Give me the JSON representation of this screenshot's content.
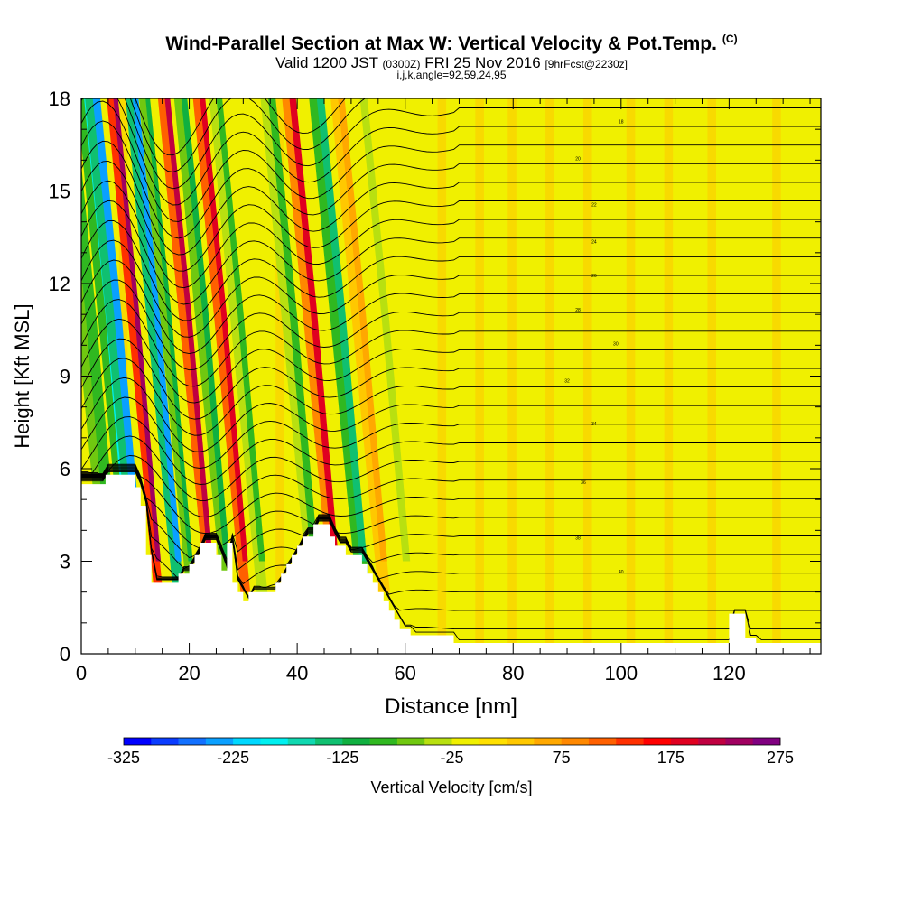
{
  "title": {
    "main": "Wind-Parallel Section at Max W: Vertical Velocity & Pot.Temp.",
    "copyright": "(C)",
    "valid_prefix": "Valid 1200 JST",
    "valid_utc": "(0300Z)",
    "valid_date": "FRI 25 Nov 2016",
    "valid_fcst": "[9hrFcst@2230z]",
    "grid_info": "i,j,k,angle=92,59,24,95"
  },
  "chart_data": {
    "type": "heatmap",
    "title": "Wind-Parallel Section at Max W: Vertical Velocity & Pot.Temp.",
    "xlabel": "Distance [nm]",
    "ylabel": "Height [Kft MSL]",
    "xlim": [
      0,
      137
    ],
    "ylim": [
      0,
      18
    ],
    "x_ticks": [
      0,
      20,
      40,
      60,
      80,
      100,
      120
    ],
    "y_ticks": [
      0,
      3,
      6,
      9,
      12,
      15,
      18
    ],
    "x_tick_labels": [
      "0",
      "20",
      "40",
      "60",
      "80",
      "100",
      "120"
    ],
    "y_tick_labels": [
      "0",
      "3",
      "6",
      "9",
      "12",
      "15",
      "18"
    ],
    "colorbar": {
      "label": "Vertical Velocity [cm/s]",
      "min": -325,
      "max": 275,
      "step": 25,
      "tick_values": [
        -325,
        -225,
        -125,
        -25,
        75,
        175,
        275
      ],
      "tick_labels": [
        "-325",
        "-225",
        "-125",
        "-25",
        "75",
        "175",
        "275"
      ],
      "colors": [
        "#0000ff",
        "#0a3cff",
        "#1270ff",
        "#0aa0ff",
        "#00d8ff",
        "#00f0f0",
        "#10d8b0",
        "#10c070",
        "#10b040",
        "#30b820",
        "#70c810",
        "#b8e010",
        "#f0f000",
        "#ffe000",
        "#ffc800",
        "#ffa800",
        "#ff8800",
        "#ff6000",
        "#ff3000",
        "#ff0000",
        "#e00020",
        "#c00040",
        "#a00060",
        "#800080"
      ]
    },
    "velocity_bands": [
      {
        "x": 4,
        "w": 3.5,
        "value": -100
      },
      {
        "x": 8,
        "w": 2.0,
        "value": -180
      },
      {
        "x": 9.5,
        "w": 2.5,
        "value": -250
      },
      {
        "x": 13.5,
        "w": 1.6,
        "value": 230
      },
      {
        "x": 17,
        "w": 2.0,
        "value": -240
      },
      {
        "x": 19.5,
        "w": 1.5,
        "value": -120
      },
      {
        "x": 23,
        "w": 1.8,
        "value": 200
      },
      {
        "x": 26,
        "w": 2.0,
        "value": -110
      },
      {
        "x": 29.5,
        "w": 1.8,
        "value": 190
      },
      {
        "x": 32.5,
        "w": 2.0,
        "value": -80
      },
      {
        "x": 42,
        "w": 2.5,
        "value": -90
      },
      {
        "x": 46,
        "w": 2.2,
        "value": 180
      },
      {
        "x": 51,
        "w": 2.5,
        "value": -140
      },
      {
        "x": 55,
        "w": 2.2,
        "value": 60
      },
      {
        "x": 59,
        "w": 2.5,
        "value": -40
      }
    ],
    "terrain": [
      [
        0,
        5.5
      ],
      [
        4.5,
        5.5
      ],
      [
        4.5,
        5.8
      ],
      [
        10,
        5.8
      ],
      [
        10,
        5.4
      ],
      [
        11,
        5.4
      ],
      [
        11,
        4.8
      ],
      [
        12,
        4.8
      ],
      [
        12,
        3.2
      ],
      [
        13,
        3.2
      ],
      [
        13,
        2.3
      ],
      [
        18,
        2.3
      ],
      [
        18,
        2.6
      ],
      [
        20,
        2.6
      ],
      [
        20,
        2.9
      ],
      [
        21,
        2.9
      ],
      [
        21,
        3.2
      ],
      [
        22,
        3.2
      ],
      [
        22,
        3.6
      ],
      [
        25,
        3.6
      ],
      [
        25,
        3.2
      ],
      [
        26,
        3.2
      ],
      [
        26,
        2.7
      ],
      [
        27,
        2.7
      ],
      [
        27,
        3.6
      ],
      [
        28,
        3.6
      ],
      [
        28,
        2.3
      ],
      [
        29,
        2.3
      ],
      [
        29,
        2.0
      ],
      [
        30,
        2.0
      ],
      [
        30,
        1.7
      ],
      [
        31,
        1.7
      ],
      [
        31,
        2.0
      ],
      [
        36,
        2.0
      ],
      [
        36,
        2.3
      ],
      [
        37,
        2.3
      ],
      [
        37,
        2.6
      ],
      [
        38,
        2.6
      ],
      [
        38,
        2.9
      ],
      [
        39,
        2.9
      ],
      [
        39,
        3.2
      ],
      [
        40,
        3.2
      ],
      [
        40,
        3.5
      ],
      [
        41,
        3.5
      ],
      [
        41,
        3.8
      ],
      [
        43,
        3.8
      ],
      [
        43,
        4.2
      ],
      [
        46,
        4.2
      ],
      [
        46,
        3.8
      ],
      [
        47,
        3.8
      ],
      [
        47,
        3.5
      ],
      [
        49,
        3.5
      ],
      [
        49,
        3.2
      ],
      [
        52,
        3.2
      ],
      [
        52,
        2.9
      ],
      [
        53,
        2.9
      ],
      [
        53,
        2.6
      ],
      [
        54,
        2.6
      ],
      [
        54,
        2.3
      ],
      [
        55,
        2.3
      ],
      [
        55,
        2.0
      ],
      [
        56,
        2.0
      ],
      [
        56,
        1.7
      ],
      [
        57,
        1.7
      ],
      [
        57,
        1.4
      ],
      [
        58,
        1.4
      ],
      [
        58,
        1.1
      ],
      [
        59,
        1.1
      ],
      [
        59,
        0.8
      ],
      [
        61,
        0.8
      ],
      [
        61,
        0.6
      ],
      [
        69,
        0.6
      ],
      [
        69,
        0.35
      ],
      [
        120,
        0.35
      ],
      [
        120,
        1.3
      ],
      [
        123,
        1.3
      ],
      [
        123,
        0.5
      ],
      [
        125,
        0.5
      ],
      [
        125,
        0.35
      ],
      [
        137,
        0.35
      ]
    ],
    "potential_temperature_contours": {
      "count": 32,
      "surface_k": 0.2,
      "top_k": 18.9,
      "label_values": [
        "18",
        "20",
        "22",
        "24",
        "26",
        "28",
        "30",
        "32",
        "34",
        "36",
        "38",
        "40"
      ]
    }
  }
}
